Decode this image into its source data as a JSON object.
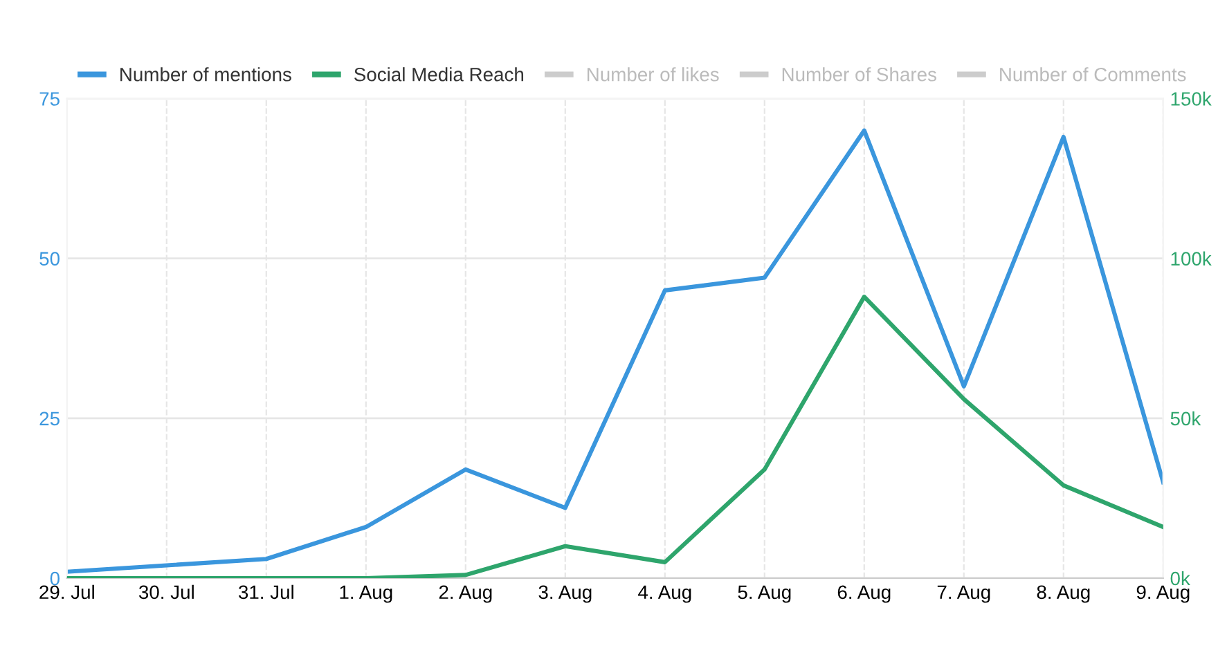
{
  "chart_data": {
    "type": "line",
    "categories": [
      "29. Jul",
      "30. Jul",
      "31. Jul",
      "1. Aug",
      "2. Aug",
      "3. Aug",
      "4. Aug",
      "5. Aug",
      "6. Aug",
      "7. Aug",
      "8. Aug",
      "9. Aug"
    ],
    "series": [
      {
        "name": "Number of mentions",
        "color": "#3a96dd",
        "values": [
          1,
          2,
          3,
          8,
          17,
          11,
          45,
          47,
          70,
          30,
          69,
          15
        ]
      },
      {
        "name": "Social Media Reach",
        "color": "#2ea56c",
        "axis": "y2",
        "values": [
          0,
          0,
          0,
          0,
          1000,
          10000,
          5000,
          34000,
          88000,
          56000,
          29000,
          16000
        ]
      },
      {
        "name": "Number of likes",
        "color": "#cccccc",
        "values": [
          null,
          null,
          null,
          null,
          null,
          null,
          null,
          null,
          null,
          null,
          null,
          null
        ]
      },
      {
        "name": "Number of Shares",
        "color": "#cccccc",
        "values": [
          null,
          null,
          null,
          null,
          null,
          null,
          null,
          null,
          null,
          null,
          null,
          null
        ]
      },
      {
        "name": "Number of Comments",
        "color": "#cccccc",
        "values": [
          null,
          null,
          null,
          null,
          null,
          null,
          null,
          null,
          null,
          null,
          null,
          null
        ]
      }
    ],
    "ylim": [
      0,
      75
    ],
    "yticks": [
      0,
      25,
      50,
      75
    ],
    "y2lim": [
      0,
      150000
    ],
    "y2ticks": [
      {
        "value": 0,
        "label": "0k"
      },
      {
        "value": 50000,
        "label": "50k"
      },
      {
        "value": 100000,
        "label": "100k"
      },
      {
        "value": 150000,
        "label": "150k"
      }
    ],
    "grid": true,
    "legend": "top left",
    "marker": "none",
    "line_style": "solid"
  }
}
